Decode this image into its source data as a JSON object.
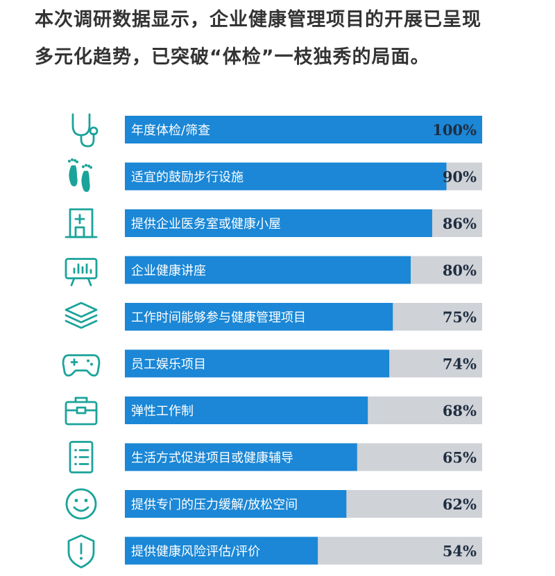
{
  "intro": {
    "line1": "本次调研数据显示，企业健康管理项目的开展已呈现",
    "line2": "多元化趋势，已突破“体检”一枝独秀的局面。"
  },
  "colors": {
    "bar": "#1b87d6",
    "track": "#cfd2d7",
    "icon": "#1aa39a"
  },
  "chart_data": {
    "type": "bar",
    "orientation": "horizontal",
    "unit": "%",
    "xlim": [
      0,
      100
    ],
    "categories": [
      "年度体检/筛查",
      "适宜的鼓励步行设施",
      "提供企业医务室或健康小屋",
      "企业健康讲座",
      "工作时间能够参与健康管理项目",
      "员工娱乐项目",
      "弹性工作制",
      "生活方式促进项目或健康辅导",
      "提供专门的压力缓解/放松空间",
      "提供健康风险评估/评价"
    ],
    "values": [
      100,
      90,
      86,
      80,
      75,
      74,
      68,
      65,
      62,
      54
    ],
    "value_labels": [
      "100%",
      "90%",
      "86%",
      "80%",
      "75%",
      "74%",
      "68%",
      "65%",
      "62%",
      "54%"
    ],
    "icons": [
      "stethoscope-icon",
      "footprints-icon",
      "clinic-icon",
      "presentation-board-icon",
      "layers-icon",
      "gamepad-icon",
      "medical-kit-icon",
      "checklist-icon",
      "smiley-icon",
      "shield-alert-icon"
    ]
  }
}
